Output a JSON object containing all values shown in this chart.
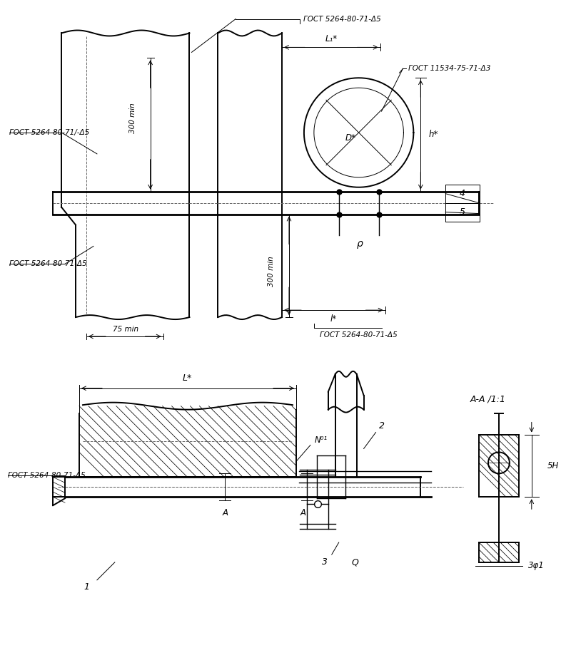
{
  "bg_color": "#ffffff",
  "line_color": "#000000",
  "fig_width": 8.0,
  "fig_height": 9.4,
  "labels": {
    "gost_top": "ГОСТ 5264-80-71-Δ5",
    "gost_left_upper": "ГОСТ 5264-80-71/-Δ5",
    "gost_left_lower": "ГОСТ 5264-80-71-Δ5",
    "gost_right": "ГОСТ 11534-75-71-Δ3",
    "gost_bottom": "ГОСТ 5264-80-71-Δ5",
    "gost_bv_left": "ГОСТ 5264-80-71-Δ5",
    "L1": "L₁*",
    "L_lower": "l*",
    "L_bv": "L*",
    "dim_300_upper": "300 min",
    "dim_300_lower": "300 min",
    "dim_75": "75 min",
    "D": "D*",
    "h": "h*",
    "rho": "ρ",
    "item4": "4",
    "item5": "5",
    "no1": "N⁰¹",
    "item2": "2",
    "item1": "1",
    "item3": "3",
    "itemQ": "Q",
    "AA": "A-A /1:1",
    "A_marker": "A",
    "dim5H": "5H",
    "dim3ph": "3φ1"
  }
}
